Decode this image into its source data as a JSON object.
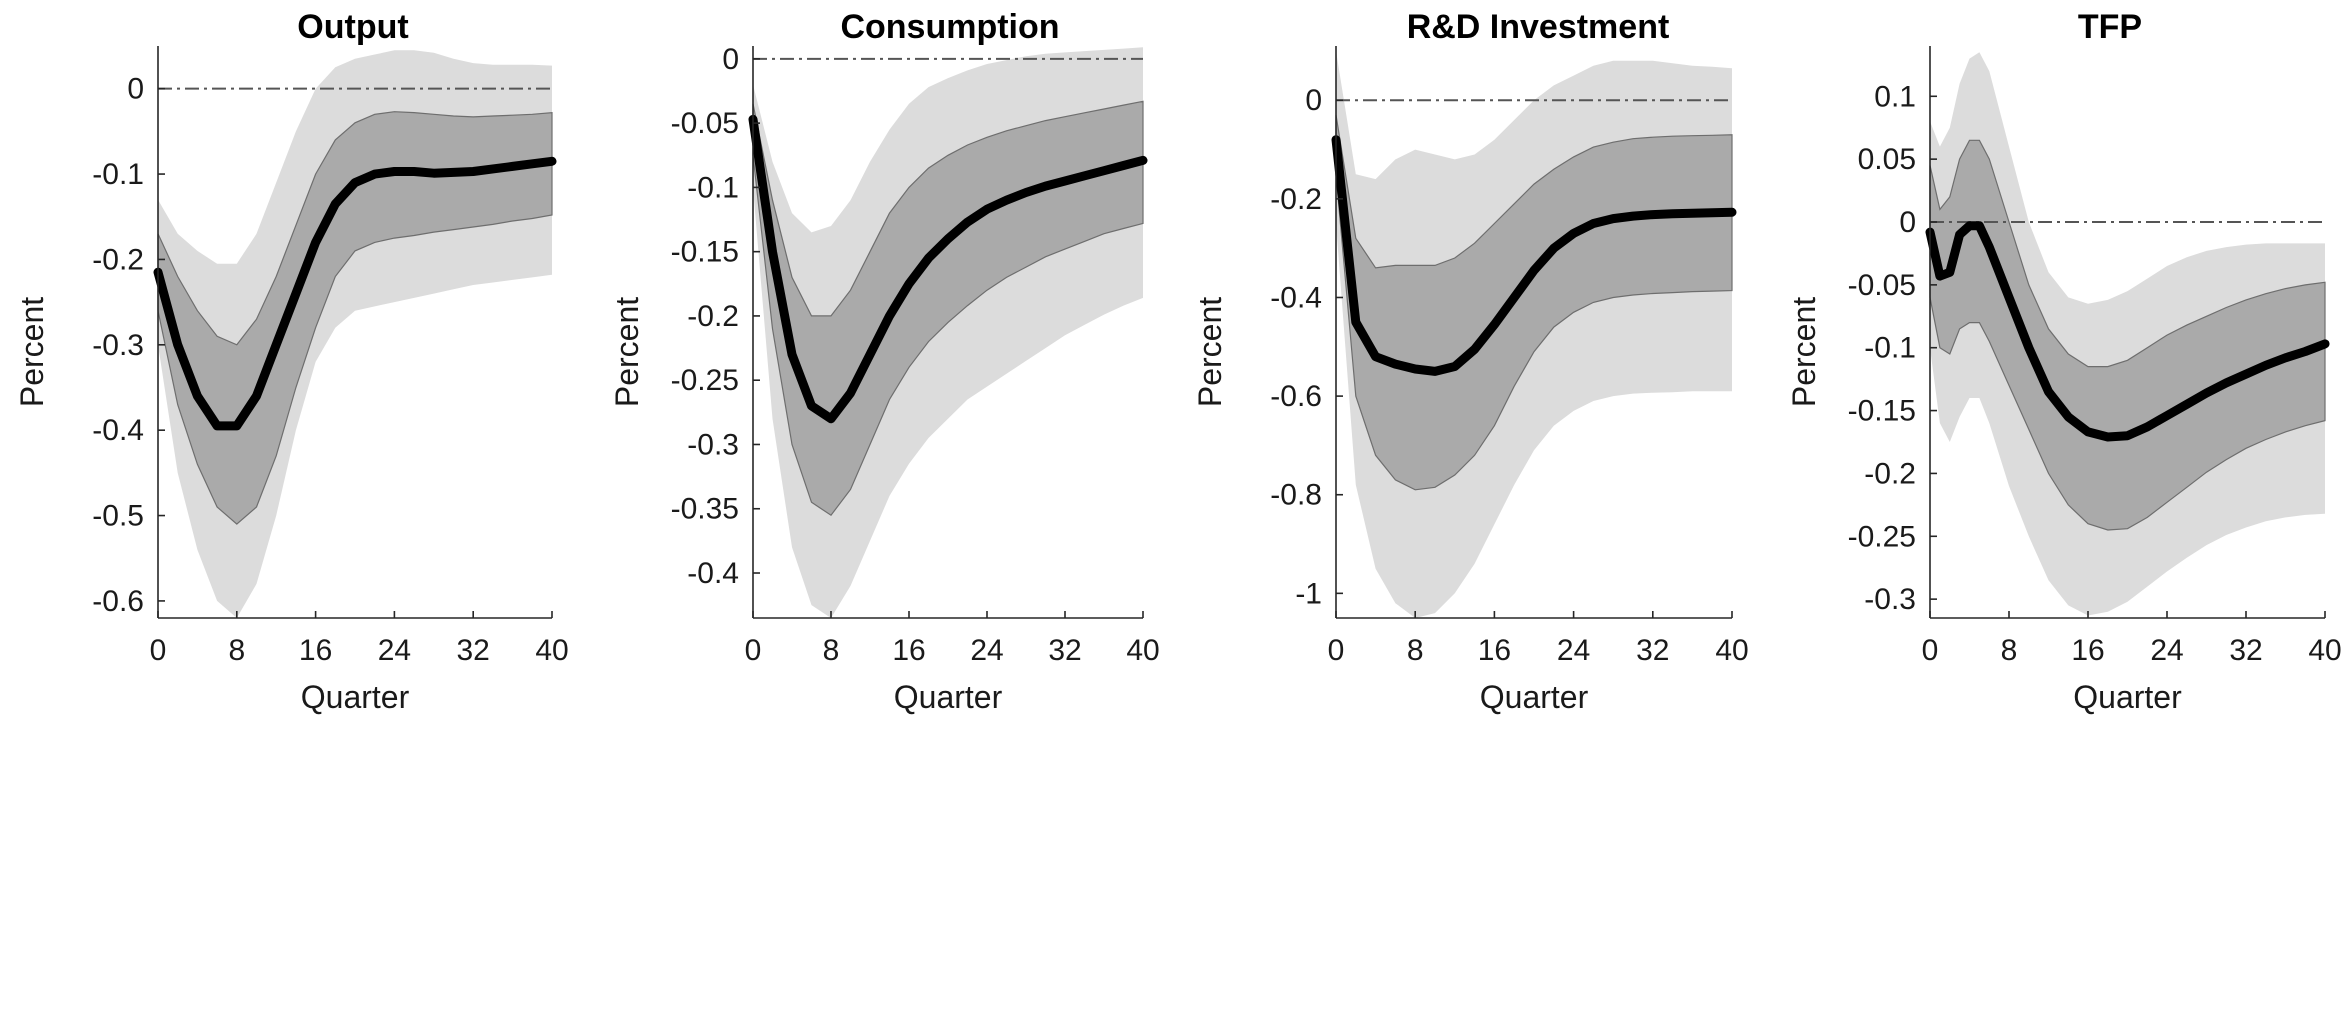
{
  "chart_data": [
    {
      "type": "line",
      "title": "Output",
      "xlabel": "Quarter",
      "ylabel": "Percent",
      "xlim": [
        0,
        40
      ],
      "ylim": [
        -0.62,
        0.05
      ],
      "xticks": [
        0,
        8,
        16,
        24,
        32,
        40
      ],
      "yticks": [
        0,
        -0.1,
        -0.2,
        -0.3,
        -0.4,
        -0.5,
        -0.6
      ],
      "ytick_labels": [
        "0",
        "-0.1",
        "-0.2",
        "-0.3",
        "-0.4",
        "-0.5",
        "-0.6"
      ],
      "zero_line": 0,
      "x": [
        0,
        2,
        4,
        6,
        8,
        10,
        12,
        14,
        16,
        18,
        20,
        22,
        24,
        26,
        28,
        30,
        32,
        34,
        36,
        38,
        40
      ],
      "median": [
        -0.215,
        -0.3,
        -0.36,
        -0.395,
        -0.395,
        -0.36,
        -0.3,
        -0.24,
        -0.18,
        -0.135,
        -0.11,
        -0.1,
        -0.097,
        -0.097,
        -0.099,
        -0.098,
        -0.097,
        -0.094,
        -0.091,
        -0.088,
        -0.085
      ],
      "band_68": {
        "upper": [
          -0.17,
          -0.22,
          -0.26,
          -0.29,
          -0.3,
          -0.27,
          -0.22,
          -0.16,
          -0.1,
          -0.06,
          -0.04,
          -0.03,
          -0.027,
          -0.028,
          -0.03,
          -0.032,
          -0.033,
          -0.032,
          -0.031,
          -0.03,
          -0.028
        ],
        "lower": [
          -0.26,
          -0.37,
          -0.44,
          -0.49,
          -0.51,
          -0.49,
          -0.43,
          -0.35,
          -0.28,
          -0.22,
          -0.19,
          -0.18,
          -0.175,
          -0.172,
          -0.168,
          -0.165,
          -0.162,
          -0.159,
          -0.155,
          -0.152,
          -0.148
        ]
      },
      "band_90": {
        "upper": [
          -0.13,
          -0.17,
          -0.19,
          -0.205,
          -0.205,
          -0.17,
          -0.11,
          -0.05,
          0.0,
          0.025,
          0.035,
          0.04,
          0.045,
          0.045,
          0.042,
          0.035,
          0.03,
          0.028,
          0.028,
          0.028,
          0.027
        ],
        "lower": [
          -0.3,
          -0.45,
          -0.54,
          -0.6,
          -0.62,
          -0.58,
          -0.5,
          -0.4,
          -0.32,
          -0.28,
          -0.26,
          -0.255,
          -0.25,
          -0.245,
          -0.24,
          -0.235,
          -0.23,
          -0.227,
          -0.224,
          -0.221,
          -0.218
        ]
      }
    },
    {
      "type": "line",
      "title": "Consumption",
      "xlabel": "Quarter",
      "ylabel": "Percent",
      "xlim": [
        0,
        40
      ],
      "ylim": [
        -0.435,
        0.01
      ],
      "xticks": [
        0,
        8,
        16,
        24,
        32,
        40
      ],
      "yticks": [
        0,
        -0.05,
        -0.1,
        -0.15,
        -0.2,
        -0.25,
        -0.3,
        -0.35,
        -0.4
      ],
      "ytick_labels": [
        "0",
        "-0.05",
        "-0.1",
        "-0.15",
        "-0.2",
        "-0.25",
        "-0.3",
        "-0.35",
        "-0.4"
      ],
      "zero_line": 0,
      "x": [
        0,
        2,
        4,
        6,
        8,
        10,
        12,
        14,
        16,
        18,
        20,
        22,
        24,
        26,
        28,
        30,
        32,
        34,
        36,
        38,
        40
      ],
      "median": [
        -0.047,
        -0.15,
        -0.23,
        -0.27,
        -0.28,
        -0.26,
        -0.23,
        -0.2,
        -0.175,
        -0.155,
        -0.14,
        -0.127,
        -0.117,
        -0.11,
        -0.104,
        -0.099,
        -0.095,
        -0.091,
        -0.087,
        -0.083,
        -0.079
      ],
      "band_68": {
        "upper": [
          -0.035,
          -0.11,
          -0.17,
          -0.2,
          -0.2,
          -0.18,
          -0.15,
          -0.12,
          -0.1,
          -0.085,
          -0.075,
          -0.067,
          -0.061,
          -0.056,
          -0.052,
          -0.048,
          -0.045,
          -0.042,
          -0.039,
          -0.036,
          -0.033
        ],
        "lower": [
          -0.075,
          -0.21,
          -0.3,
          -0.345,
          -0.355,
          -0.335,
          -0.3,
          -0.265,
          -0.24,
          -0.22,
          -0.205,
          -0.192,
          -0.18,
          -0.17,
          -0.162,
          -0.154,
          -0.148,
          -0.142,
          -0.136,
          -0.132,
          -0.128
        ]
      },
      "band_90": {
        "upper": [
          -0.02,
          -0.08,
          -0.12,
          -0.135,
          -0.13,
          -0.11,
          -0.08,
          -0.055,
          -0.035,
          -0.022,
          -0.015,
          -0.009,
          -0.004,
          -0.001,
          0.002,
          0.004,
          0.005,
          0.006,
          0.007,
          0.008,
          0.009
        ],
        "lower": [
          -0.1,
          -0.28,
          -0.38,
          -0.425,
          -0.435,
          -0.41,
          -0.375,
          -0.34,
          -0.315,
          -0.295,
          -0.28,
          -0.265,
          -0.255,
          -0.245,
          -0.235,
          -0.225,
          -0.215,
          -0.207,
          -0.199,
          -0.192,
          -0.186
        ]
      }
    },
    {
      "type": "line",
      "title": "R&D Investment",
      "xlabel": "Quarter",
      "ylabel": "Percent",
      "xlim": [
        0,
        40
      ],
      "ylim": [
        -1.05,
        0.11
      ],
      "xticks": [
        0,
        8,
        16,
        24,
        32,
        40
      ],
      "yticks": [
        0,
        -0.2,
        -0.4,
        -0.6,
        -0.8,
        -1
      ],
      "ytick_labels": [
        "0",
        "-0.2",
        "-0.4",
        "-0.6",
        "-0.8",
        "-1"
      ],
      "zero_line": 0,
      "x": [
        0,
        2,
        4,
        6,
        8,
        10,
        12,
        14,
        16,
        18,
        20,
        22,
        24,
        26,
        28,
        30,
        32,
        34,
        36,
        38,
        40
      ],
      "median": [
        -0.08,
        -0.45,
        -0.52,
        -0.535,
        -0.545,
        -0.55,
        -0.54,
        -0.505,
        -0.455,
        -0.4,
        -0.345,
        -0.3,
        -0.27,
        -0.25,
        -0.24,
        -0.235,
        -0.232,
        -0.23,
        -0.229,
        -0.228,
        -0.227
      ],
      "band_68": {
        "upper": [
          -0.03,
          -0.28,
          -0.34,
          -0.335,
          -0.335,
          -0.335,
          -0.32,
          -0.29,
          -0.25,
          -0.21,
          -0.17,
          -0.14,
          -0.115,
          -0.095,
          -0.085,
          -0.078,
          -0.075,
          -0.073,
          -0.072,
          -0.071,
          -0.07
        ],
        "lower": [
          -0.15,
          -0.6,
          -0.72,
          -0.77,
          -0.79,
          -0.785,
          -0.76,
          -0.72,
          -0.66,
          -0.58,
          -0.51,
          -0.46,
          -0.43,
          -0.41,
          -0.4,
          -0.395,
          -0.392,
          -0.39,
          -0.388,
          -0.387,
          -0.386
        ],
        "_note_ignore": ""
      },
      "band_90": {
        "upper": [
          0.1,
          -0.15,
          -0.16,
          -0.12,
          -0.1,
          -0.11,
          -0.12,
          -0.11,
          -0.08,
          -0.04,
          0.0,
          0.03,
          0.05,
          0.07,
          0.08,
          0.08,
          0.08,
          0.075,
          0.07,
          0.068,
          0.065
        ],
        "lower": [
          -0.25,
          -0.78,
          -0.95,
          -1.02,
          -1.05,
          -1.04,
          -1.0,
          -0.94,
          -0.86,
          -0.78,
          -0.71,
          -0.66,
          -0.63,
          -0.61,
          -0.6,
          -0.595,
          -0.593,
          -0.592,
          -0.59,
          -0.59,
          -0.59
        ]
      }
    },
    {
      "type": "line",
      "title": "TFP",
      "xlabel": "Quarter",
      "ylabel": "Percent",
      "xlim": [
        0,
        40
      ],
      "ylim": [
        -0.315,
        0.14
      ],
      "xticks": [
        0,
        8,
        16,
        24,
        32,
        40
      ],
      "yticks": [
        0.1,
        0.05,
        0,
        -0.05,
        -0.1,
        -0.15,
        -0.2,
        -0.25,
        -0.3
      ],
      "ytick_labels": [
        "0.1",
        "0.05",
        "0",
        "-0.05",
        "-0.1",
        "-0.15",
        "-0.2",
        "-0.25",
        "-0.3"
      ],
      "zero_line": 0,
      "x": [
        0,
        1,
        2,
        3,
        4,
        5,
        6,
        8,
        10,
        12,
        14,
        16,
        18,
        20,
        22,
        24,
        26,
        28,
        30,
        32,
        34,
        36,
        38,
        40
      ],
      "median": [
        -0.008,
        -0.043,
        -0.04,
        -0.01,
        -0.003,
        -0.003,
        -0.02,
        -0.06,
        -0.1,
        -0.135,
        -0.155,
        -0.167,
        -0.171,
        -0.17,
        -0.163,
        -0.154,
        -0.145,
        -0.136,
        -0.128,
        -0.121,
        -0.114,
        -0.108,
        -0.103,
        -0.097
      ],
      "band_68": {
        "upper": [
          0.045,
          0.01,
          0.02,
          0.05,
          0.065,
          0.065,
          0.05,
          0.0,
          -0.05,
          -0.085,
          -0.105,
          -0.115,
          -0.115,
          -0.11,
          -0.1,
          -0.09,
          -0.082,
          -0.075,
          -0.068,
          -0.062,
          -0.057,
          -0.053,
          -0.05,
          -0.048
        ],
        "lower": [
          -0.06,
          -0.1,
          -0.105,
          -0.085,
          -0.08,
          -0.08,
          -0.095,
          -0.13,
          -0.165,
          -0.2,
          -0.225,
          -0.24,
          -0.245,
          -0.244,
          -0.235,
          -0.223,
          -0.211,
          -0.199,
          -0.189,
          -0.18,
          -0.173,
          -0.167,
          -0.162,
          -0.158
        ]
      },
      "band_90": {
        "upper": [
          0.08,
          0.06,
          0.075,
          0.11,
          0.13,
          0.135,
          0.12,
          0.06,
          0.0,
          -0.04,
          -0.06,
          -0.065,
          -0.062,
          -0.055,
          -0.045,
          -0.035,
          -0.028,
          -0.023,
          -0.02,
          -0.018,
          -0.017,
          -0.017,
          -0.017,
          -0.017
        ],
        "lower": [
          -0.1,
          -0.16,
          -0.175,
          -0.155,
          -0.14,
          -0.14,
          -0.16,
          -0.21,
          -0.25,
          -0.285,
          -0.305,
          -0.313,
          -0.31,
          -0.302,
          -0.29,
          -0.278,
          -0.267,
          -0.257,
          -0.249,
          -0.243,
          -0.238,
          -0.235,
          -0.233,
          -0.232
        ]
      }
    }
  ],
  "colors": {
    "band_90": "#dcdcdc",
    "band_68": "#aaaaaa",
    "band_68_edge": "#6e6e6e",
    "median": "#000000",
    "zero_line": "#555555",
    "axis": "#262626"
  }
}
